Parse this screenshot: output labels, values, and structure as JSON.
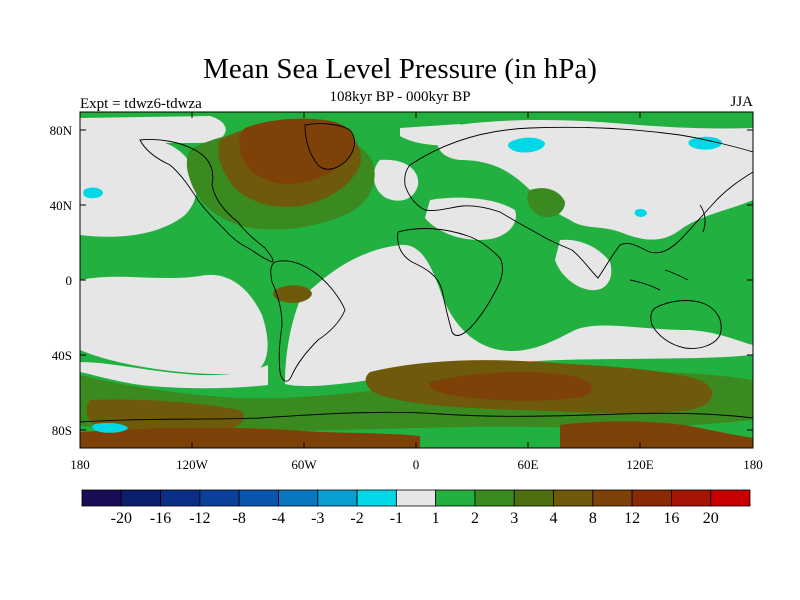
{
  "header": {
    "title": "Mean Sea Level Pressure (in hPa)",
    "subtitle": "108kyr BP - 000kyr BP",
    "experiment": "Expt = tdwz6-tdwza",
    "season": "JJA"
  },
  "axes": {
    "lat_ticks": [
      "80N",
      "40N",
      "0",
      "40S",
      "80S"
    ],
    "lon_ticks": [
      "180",
      "120W",
      "60W",
      "0",
      "60E",
      "120E",
      "180"
    ]
  },
  "colorbar": {
    "colors": [
      "#1a0b55",
      "#0c1f6e",
      "#0b2f86",
      "#0b3f9c",
      "#0a55ae",
      "#0a78c0",
      "#0a9fd3",
      "#00d8e8",
      "#e6e6e6",
      "#22b040",
      "#3a8a20",
      "#4f6e10",
      "#6e5a0a",
      "#7e4208",
      "#8a2a05",
      "#a61405",
      "#c80000"
    ],
    "labels": [
      "-20",
      "-16",
      "-12",
      "-8",
      "-4",
      "-3",
      "-2",
      "-1",
      "1",
      "2",
      "3",
      "4",
      "8",
      "12",
      "16",
      "20"
    ]
  },
  "field_colors": {
    "background": "#22b040",
    "neutral": "#e6e6e6",
    "weak_positive": "#3a8a20",
    "moderate_positive": "#6e5a0a",
    "strong_positive": "#7e4208",
    "weak_negative": "#00d8e8"
  }
}
